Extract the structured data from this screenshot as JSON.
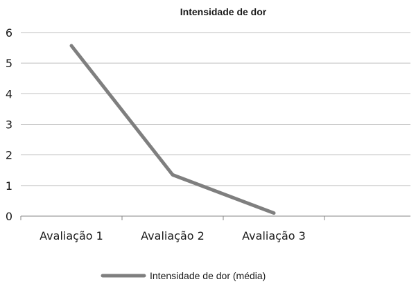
{
  "chart_data": {
    "type": "line",
    "title": "Intensidade de dor",
    "xlabel": "",
    "ylabel": "",
    "categories": [
      "Avaliação 1",
      "Avaliação 2",
      "Avaliação 3"
    ],
    "series": [
      {
        "name": "Intensidade de dor (média)",
        "values": [
          5.57,
          1.35,
          0.1
        ],
        "color": "#7f7f7f"
      }
    ],
    "ylim": [
      0,
      6
    ],
    "yticks": [
      "0",
      "1",
      "2",
      "3",
      "4",
      "5",
      "6"
    ],
    "grid": "horizontal",
    "legend_position": "bottom",
    "gridline_color": "#bfbfbf",
    "axis_color": "#868686"
  }
}
